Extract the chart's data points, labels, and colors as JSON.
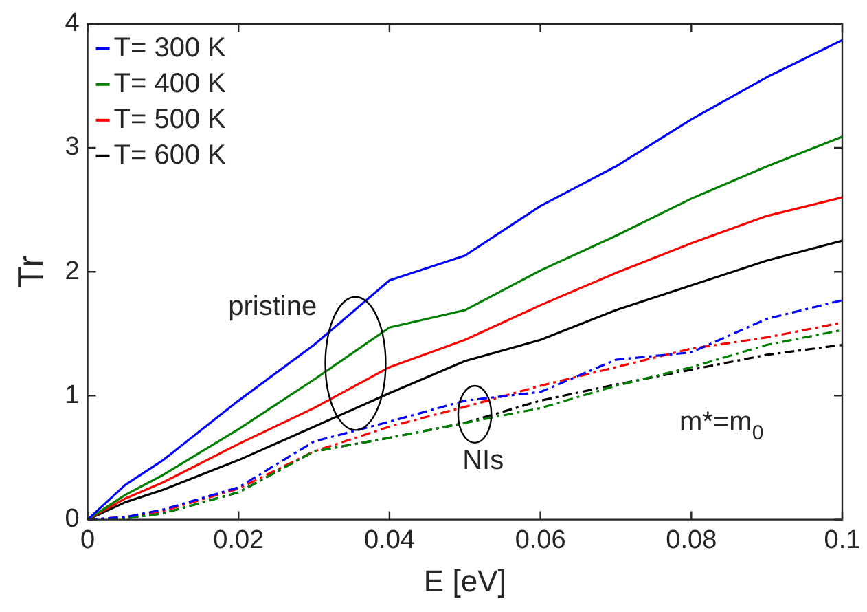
{
  "chart_data": {
    "type": "line",
    "xlabel": "E [eV]",
    "ylabel": "Tr",
    "x": [
      0,
      0.005,
      0.01,
      0.02,
      0.03,
      0.04,
      0.05,
      0.06,
      0.07,
      0.08,
      0.09,
      0.1
    ],
    "series": [
      {
        "name": "T= 300 K",
        "color": "#0000ff",
        "line_style": "solid",
        "values": [
          0,
          0.28,
          0.48,
          0.96,
          1.41,
          1.93,
          2.13,
          2.53,
          2.85,
          3.23,
          3.57,
          3.87
        ]
      },
      {
        "name": "T= 400 K",
        "color": "#008000",
        "line_style": "solid",
        "values": [
          0,
          0.2,
          0.36,
          0.73,
          1.13,
          1.55,
          1.69,
          2.01,
          2.29,
          2.59,
          2.85,
          3.09
        ]
      },
      {
        "name": "T= 500 K",
        "color": "#ff0000",
        "line_style": "solid",
        "values": [
          0,
          0.17,
          0.3,
          0.61,
          0.9,
          1.23,
          1.45,
          1.73,
          1.99,
          2.23,
          2.45,
          2.6
        ]
      },
      {
        "name": "T= 600 K",
        "color": "#000000",
        "line_style": "solid",
        "values": [
          0,
          0.14,
          0.24,
          0.48,
          0.75,
          1.02,
          1.28,
          1.45,
          1.69,
          1.89,
          2.09,
          2.25
        ]
      },
      {
        "color": "#0000ff",
        "line_style": "dashed",
        "values": [
          0,
          0.02,
          0.08,
          0.26,
          0.63,
          0.79,
          0.96,
          1.03,
          1.29,
          1.35,
          1.62,
          1.77
        ]
      },
      {
        "color": "#008000",
        "line_style": "dashed",
        "values": [
          0,
          0.01,
          0.05,
          0.22,
          0.55,
          0.66,
          0.78,
          0.9,
          1.08,
          1.23,
          1.41,
          1.53
        ]
      },
      {
        "color": "#ff0000",
        "line_style": "dashed",
        "values": [
          0,
          0.02,
          0.07,
          0.25,
          0.55,
          0.75,
          0.91,
          1.08,
          1.23,
          1.38,
          1.47,
          1.59
        ]
      },
      {
        "color": "#000000",
        "line_style": "dashed",
        "values": [
          0,
          0.01,
          0.05,
          0.22,
          0.55,
          0.66,
          0.78,
          0.96,
          1.09,
          1.21,
          1.33,
          1.41
        ]
      }
    ],
    "xlim": [
      0,
      0.1
    ],
    "xticks": [
      0,
      0.02,
      0.04,
      0.06,
      0.08,
      0.1
    ],
    "ylim": [
      0,
      4
    ],
    "yticks": [
      0,
      1,
      2,
      3,
      4
    ],
    "grid": false,
    "legend": "top left",
    "marker": "none",
    "annotations": [
      "pristine",
      "NIs",
      "m*=m$_{0}$"
    ]
  }
}
